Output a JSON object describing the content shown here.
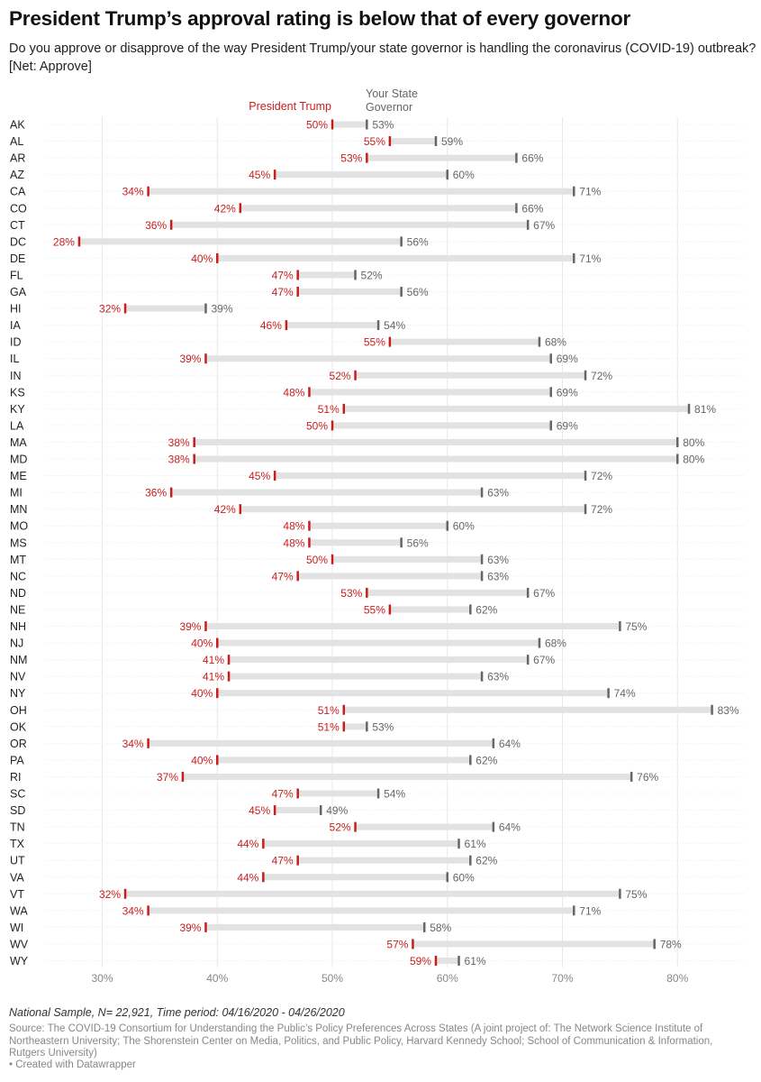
{
  "title": "President Trump’s approval rating is below that of every governor",
  "subtitle": "Do you approve or disapprove of the way President Trump/your state governor is handling the coronavirus (COVID-19) outbreak? [Net: Approve]",
  "notes": "National Sample, N= 22,921, Time period: 04/16/2020 - 04/26/2020",
  "source": "Source: The COVID-19 Consortium for Understanding the Public’s Policy Preferences Across States (A joint project of: The Network Science Institute of Northeastern University; The Shorenstein Center on Media, Politics, and Public Policy, Harvard Kennedy School; School of Communication & Information, Rutgers University)",
  "credit": "• Created with Datawrapper",
  "colors": {
    "trump": "#c71e1d",
    "governor": "#666666",
    "range": "#e2e2e2",
    "grid": "#e8e8e8"
  },
  "chart_data": {
    "type": "range_plot",
    "title": "President Trump’s approval rating is below that of every governor",
    "series": [
      {
        "name": "President Trump",
        "key": "trump"
      },
      {
        "name": "Your State Governor",
        "key": "governor"
      }
    ],
    "xlim": [
      25,
      83
    ],
    "x_ticks": [
      30,
      40,
      50,
      60,
      70,
      80
    ],
    "x_tick_labels": [
      "30%",
      "40%",
      "50%",
      "60%",
      "70%",
      "80%"
    ],
    "rows": [
      {
        "state": "AK",
        "trump": 50,
        "governor": 53
      },
      {
        "state": "AL",
        "trump": 55,
        "governor": 59
      },
      {
        "state": "AR",
        "trump": 53,
        "governor": 66
      },
      {
        "state": "AZ",
        "trump": 45,
        "governor": 60
      },
      {
        "state": "CA",
        "trump": 34,
        "governor": 71
      },
      {
        "state": "CO",
        "trump": 42,
        "governor": 66
      },
      {
        "state": "CT",
        "trump": 36,
        "governor": 67
      },
      {
        "state": "DC",
        "trump": 28,
        "governor": 56
      },
      {
        "state": "DE",
        "trump": 40,
        "governor": 71
      },
      {
        "state": "FL",
        "trump": 47,
        "governor": 52
      },
      {
        "state": "GA",
        "trump": 47,
        "governor": 56
      },
      {
        "state": "HI",
        "trump": 32,
        "governor": 39
      },
      {
        "state": "IA",
        "trump": 46,
        "governor": 54
      },
      {
        "state": "ID",
        "trump": 55,
        "governor": 68
      },
      {
        "state": "IL",
        "trump": 39,
        "governor": 69
      },
      {
        "state": "IN",
        "trump": 52,
        "governor": 72
      },
      {
        "state": "KS",
        "trump": 48,
        "governor": 69
      },
      {
        "state": "KY",
        "trump": 51,
        "governor": 81
      },
      {
        "state": "LA",
        "trump": 50,
        "governor": 69
      },
      {
        "state": "MA",
        "trump": 38,
        "governor": 80
      },
      {
        "state": "MD",
        "trump": 38,
        "governor": 80
      },
      {
        "state": "ME",
        "trump": 45,
        "governor": 72
      },
      {
        "state": "MI",
        "trump": 36,
        "governor": 63
      },
      {
        "state": "MN",
        "trump": 42,
        "governor": 72
      },
      {
        "state": "MO",
        "trump": 48,
        "governor": 60
      },
      {
        "state": "MS",
        "trump": 48,
        "governor": 56
      },
      {
        "state": "MT",
        "trump": 50,
        "governor": 63
      },
      {
        "state": "NC",
        "trump": 47,
        "governor": 63
      },
      {
        "state": "ND",
        "trump": 53,
        "governor": 67
      },
      {
        "state": "NE",
        "trump": 55,
        "governor": 62
      },
      {
        "state": "NH",
        "trump": 39,
        "governor": 75
      },
      {
        "state": "NJ",
        "trump": 40,
        "governor": 68
      },
      {
        "state": "NM",
        "trump": 41,
        "governor": 67
      },
      {
        "state": "NV",
        "trump": 41,
        "governor": 63
      },
      {
        "state": "NY",
        "trump": 40,
        "governor": 74
      },
      {
        "state": "OH",
        "trump": 51,
        "governor": 83
      },
      {
        "state": "OK",
        "trump": 51,
        "governor": 53
      },
      {
        "state": "OR",
        "trump": 34,
        "governor": 64
      },
      {
        "state": "PA",
        "trump": 40,
        "governor": 62
      },
      {
        "state": "RI",
        "trump": 37,
        "governor": 76
      },
      {
        "state": "SC",
        "trump": 47,
        "governor": 54
      },
      {
        "state": "SD",
        "trump": 45,
        "governor": 49
      },
      {
        "state": "TN",
        "trump": 52,
        "governor": 64
      },
      {
        "state": "TX",
        "trump": 44,
        "governor": 61
      },
      {
        "state": "UT",
        "trump": 47,
        "governor": 62
      },
      {
        "state": "VA",
        "trump": 44,
        "governor": 60
      },
      {
        "state": "VT",
        "trump": 32,
        "governor": 75
      },
      {
        "state": "WA",
        "trump": 34,
        "governor": 71
      },
      {
        "state": "WI",
        "trump": 39,
        "governor": 58
      },
      {
        "state": "WV",
        "trump": 57,
        "governor": 78
      },
      {
        "state": "WY",
        "trump": 59,
        "governor": 61
      }
    ]
  }
}
